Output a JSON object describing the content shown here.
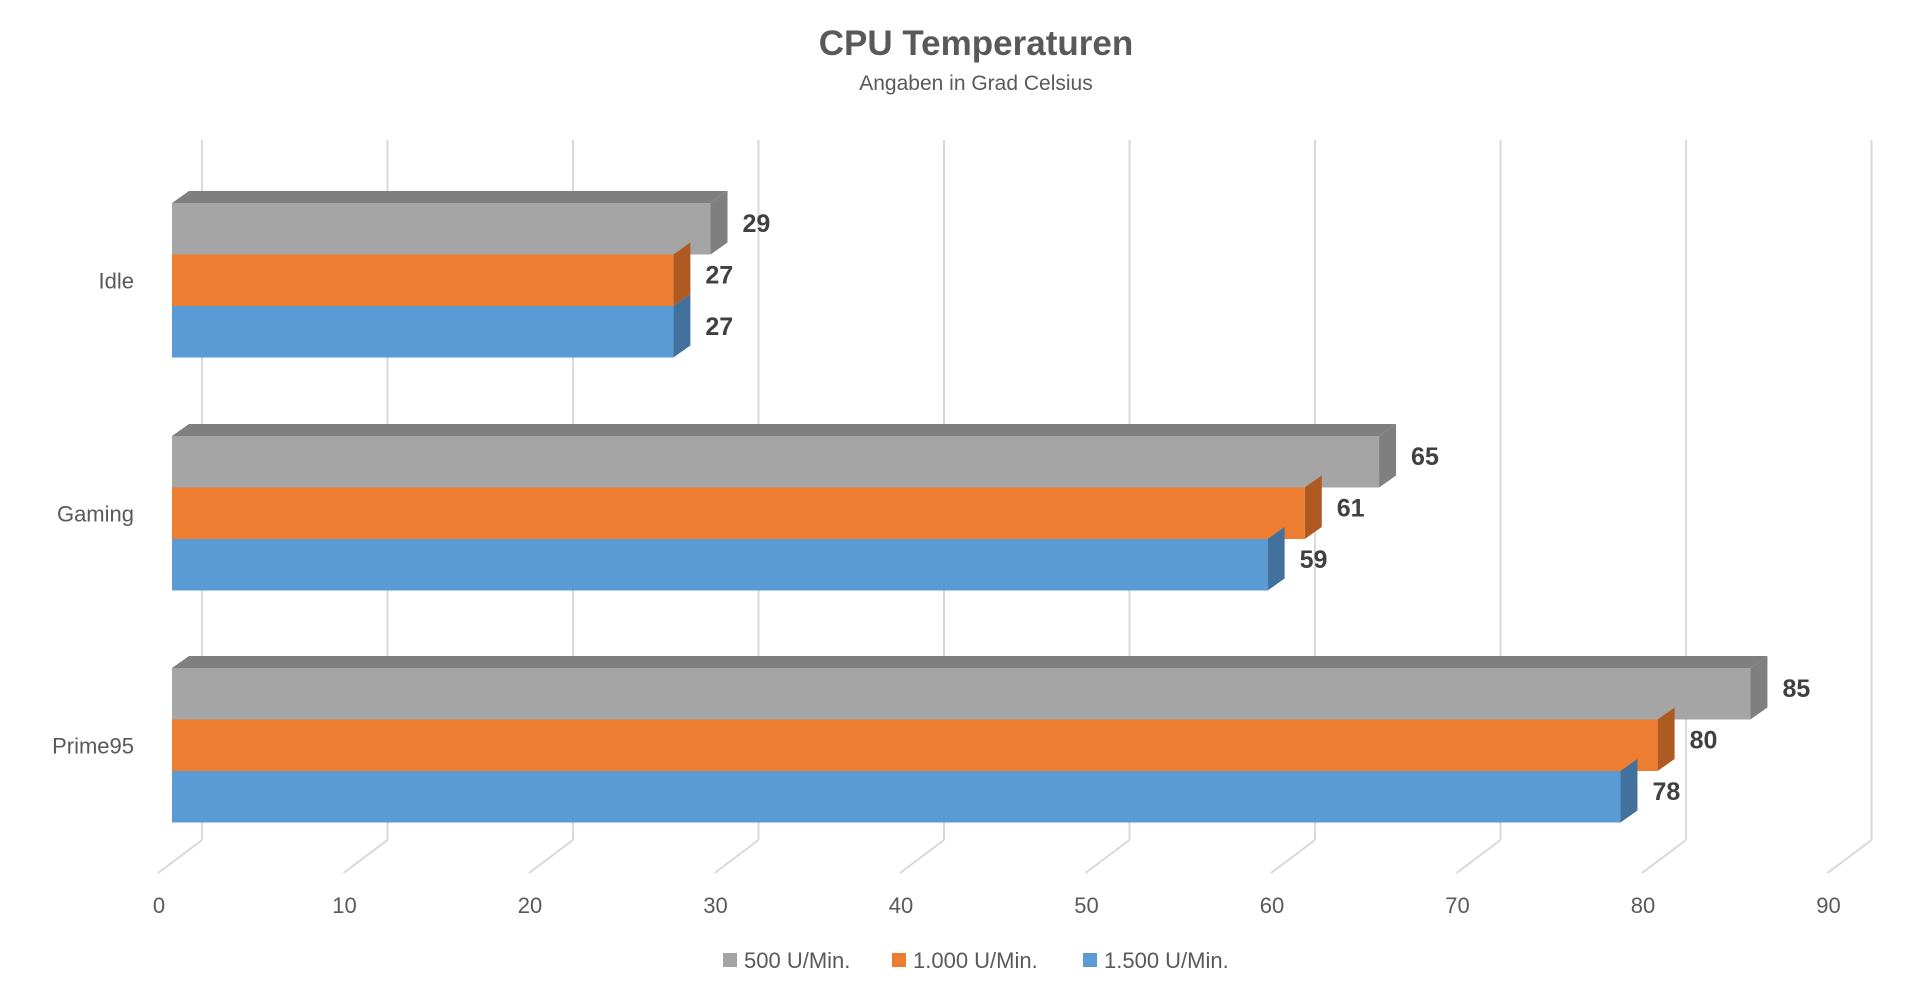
{
  "chart_data": {
    "type": "bar",
    "orientation": "horizontal",
    "style": "3d",
    "title": "CPU Temperaturen",
    "subtitle": "Angaben in Grad Celsius",
    "categories": [
      "Idle",
      "Gaming",
      "Prime95"
    ],
    "series": [
      {
        "name": "500 U/Min.",
        "values": [
          29,
          65,
          85
        ],
        "color": "#a5a5a5",
        "side_color": "#7f7f7f"
      },
      {
        "name": "1.000 U/Min.",
        "values": [
          27,
          61,
          80
        ],
        "color": "#ed7d31",
        "side_color": "#ae5a21"
      },
      {
        "name": "1.500 U/Min.",
        "values": [
          27,
          59,
          78
        ],
        "color": "#5b9bd5",
        "side_color": "#41719c"
      }
    ],
    "x_ticks": [
      "0",
      "10",
      "20",
      "30",
      "40",
      "50",
      "60",
      "70",
      "80",
      "90"
    ],
    "xlim": [
      0,
      90
    ],
    "grid": true,
    "legend_position": "bottom",
    "data_labels": true
  }
}
